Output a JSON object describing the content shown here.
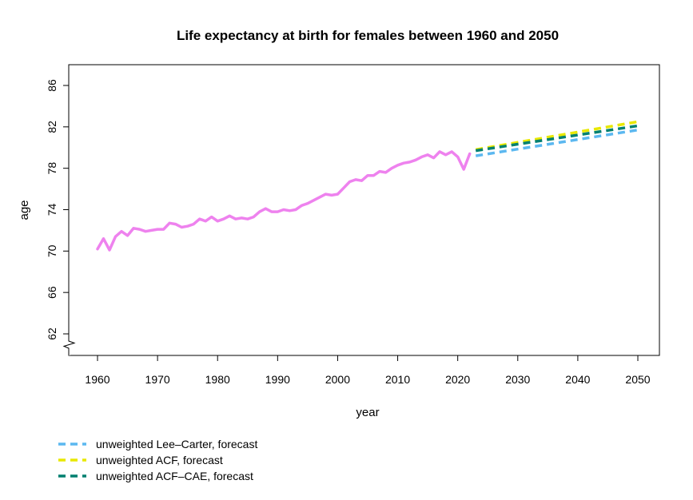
{
  "chart_data": {
    "type": "line",
    "title": "Life expectancy at birth for females between 1960 and 2050",
    "xlabel": "year",
    "ylabel": "age",
    "xlim": [
      1960,
      2050
    ],
    "ylim": [
      62,
      86
    ],
    "x_ticks": [
      "1960",
      "1970",
      "1980",
      "1990",
      "2000",
      "2010",
      "2020",
      "2030",
      "2040",
      "2050"
    ],
    "y_ticks": [
      "62",
      "66",
      "70",
      "74",
      "78",
      "82",
      "86"
    ],
    "axis_break": "y-bottom",
    "grid": false,
    "legend_position": "bottom-left",
    "series": [
      {
        "color": "#ee82ee",
        "style": "solid",
        "x": [
          1960,
          1961,
          1962,
          1963,
          1964,
          1965,
          1966,
          1967,
          1968,
          1969,
          1970,
          1971,
          1972,
          1973,
          1974,
          1975,
          1976,
          1977,
          1978,
          1979,
          1980,
          1981,
          1982,
          1983,
          1984,
          1985,
          1986,
          1987,
          1988,
          1989,
          1990,
          1991,
          1992,
          1993,
          1994,
          1995,
          1996,
          1997,
          1998,
          1999,
          2000,
          2001,
          2002,
          2003,
          2004,
          2005,
          2006,
          2007,
          2008,
          2009,
          2010,
          2011,
          2012,
          2013,
          2014,
          2015,
          2016,
          2017,
          2018,
          2019,
          2020,
          2021,
          2022
        ],
        "values": [
          70.2,
          71.2,
          70.1,
          71.4,
          71.9,
          71.5,
          72.2,
          72.1,
          71.9,
          72.0,
          72.1,
          72.1,
          72.7,
          72.6,
          72.3,
          72.4,
          72.6,
          73.1,
          72.9,
          73.3,
          72.9,
          73.1,
          73.4,
          73.1,
          73.2,
          73.1,
          73.3,
          73.8,
          74.1,
          73.8,
          73.8,
          74.0,
          73.9,
          74.0,
          74.4,
          74.6,
          74.9,
          75.2,
          75.5,
          75.4,
          75.5,
          76.1,
          76.7,
          76.9,
          76.8,
          77.3,
          77.3,
          77.7,
          77.6,
          78.0,
          78.3,
          78.5,
          78.6,
          78.8,
          79.1,
          79.3,
          79.0,
          79.6,
          79.3,
          79.6,
          79.1,
          77.9,
          79.4
        ]
      },
      {
        "name": "unweighted Lee–Carter, forecast",
        "color": "#5cb8f0",
        "style": "dashed",
        "x": [
          2023,
          2050
        ],
        "values": [
          79.2,
          81.7
        ]
      },
      {
        "name": "unweighted ACF, forecast",
        "color": "#e8e800",
        "style": "dashed",
        "x": [
          2023,
          2050
        ],
        "values": [
          79.8,
          82.5
        ]
      },
      {
        "name": "unweighted ACF–CAE, forecast",
        "color": "#008070",
        "style": "dashed",
        "x": [
          2023,
          2050
        ],
        "values": [
          79.7,
          82.1
        ]
      }
    ]
  }
}
